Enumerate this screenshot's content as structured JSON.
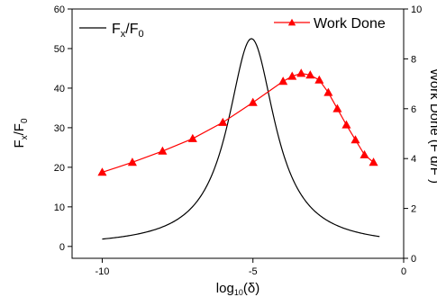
{
  "chart_data": {
    "type": "line",
    "title": "",
    "xlabel": "log10(δ)",
    "xlabel_parts": {
      "base": "log",
      "sub": "10",
      "rest": "(δ)"
    },
    "xlim": [
      -11,
      0
    ],
    "x_ticks": [
      -10,
      -5,
      0
    ],
    "x_tick_labels": [
      "-10",
      "-5",
      "0"
    ],
    "left_axis": {
      "label": "Fx/F0",
      "label_parts": [
        "F",
        "x",
        "/F",
        "0"
      ],
      "ylim": [
        -3,
        60
      ],
      "ticks": [
        0,
        10,
        20,
        30,
        40,
        50,
        60
      ],
      "tick_labels": [
        "0",
        "10",
        "20",
        "30",
        "40",
        "50",
        "60"
      ]
    },
    "right_axis": {
      "label": "Work Done (F d/F )",
      "ylim": [
        0,
        10
      ],
      "ticks": [
        0,
        2,
        4,
        6,
        8,
        10
      ],
      "tick_labels": [
        "0",
        "2",
        "4",
        "6",
        "8",
        "10"
      ]
    },
    "legend_position": "top",
    "series": [
      {
        "name": "Fx/F0",
        "name_parts": [
          "F",
          "x",
          "/F",
          "0"
        ],
        "axis": "left",
        "color": "#000000",
        "marker": "none",
        "lorentz": {
          "center": -5.05,
          "height": 52.5,
          "halfwidth": 0.95,
          "baseline": 0.0
        },
        "x_range": [
          -10,
          -0.8
        ]
      },
      {
        "name": "Work Done",
        "axis": "right",
        "color": "#ff0000",
        "marker": "triangle",
        "x": [
          -10,
          -9,
          -8,
          -7,
          -6,
          -5,
          -4,
          -3.7,
          -3.4,
          -3.1,
          -2.8,
          -2.5,
          -2.2,
          -1.9,
          -1.6,
          -1.3,
          -1.0
        ],
        "y": [
          3.45,
          3.85,
          4.3,
          4.8,
          5.45,
          6.25,
          7.1,
          7.3,
          7.42,
          7.35,
          7.15,
          6.65,
          6.0,
          5.35,
          4.75,
          4.15,
          3.85
        ]
      }
    ]
  }
}
